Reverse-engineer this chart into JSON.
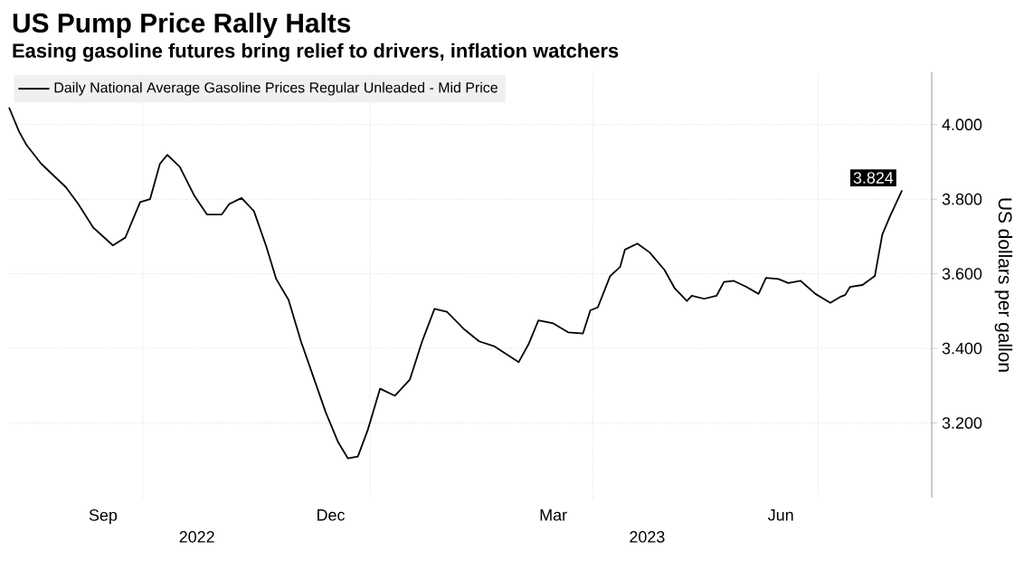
{
  "chart_data": {
    "type": "line",
    "title": "US Pump Price Rally Halts",
    "subtitle": "Easing gasoline futures bring relief to drivers, inflation watchers",
    "ylabel": "US dollars per gallon",
    "x": [
      "2022-08-08",
      "2022-08-12",
      "2022-08-15",
      "2022-08-21",
      "2022-08-31",
      "2022-09-05",
      "2022-09-11",
      "2022-09-19",
      "2022-09-24",
      "2022-09-30",
      "2022-10-04",
      "2022-10-08",
      "2022-10-11",
      "2022-10-16",
      "2022-10-22",
      "2022-10-27",
      "2022-11-02",
      "2022-11-05",
      "2022-11-10",
      "2022-11-15",
      "2022-11-20",
      "2022-11-24",
      "2022-11-29",
      "2022-12-04",
      "2022-12-09",
      "2022-12-14",
      "2022-12-19",
      "2022-12-23",
      "2022-12-27",
      "2022-12-31",
      "2023-01-05",
      "2023-01-11",
      "2023-01-17",
      "2023-01-22",
      "2023-01-27",
      "2023-02-01",
      "2023-02-08",
      "2023-02-14",
      "2023-02-20",
      "2023-03-02",
      "2023-03-06",
      "2023-03-10",
      "2023-03-16",
      "2023-03-22",
      "2023-03-28",
      "2023-03-31",
      "2023-04-03",
      "2023-04-08",
      "2023-04-12",
      "2023-04-14",
      "2023-04-19",
      "2023-04-24",
      "2023-04-30",
      "2023-05-04",
      "2023-05-09",
      "2023-05-11",
      "2023-05-16",
      "2023-05-21",
      "2023-05-24",
      "2023-05-28",
      "2023-06-02",
      "2023-06-07",
      "2023-06-10",
      "2023-06-15",
      "2023-06-19",
      "2023-06-24",
      "2023-06-30",
      "2023-07-06",
      "2023-07-10",
      "2023-07-12",
      "2023-07-14",
      "2023-07-19",
      "2023-07-24",
      "2023-07-27",
      "2023-07-30",
      "2023-08-04"
    ],
    "series": [
      {
        "name": "Daily National Average Gasoline Prices Regular Unleaded - Mid Price",
        "color": "#000000",
        "values": [
          4.046,
          3.982,
          3.946,
          3.895,
          3.832,
          3.787,
          3.724,
          3.676,
          3.697,
          3.792,
          3.8,
          3.895,
          3.919,
          3.887,
          3.808,
          3.759,
          3.759,
          3.787,
          3.803,
          3.768,
          3.673,
          3.586,
          3.53,
          3.419,
          3.324,
          3.229,
          3.149,
          3.105,
          3.11,
          3.181,
          3.292,
          3.273,
          3.316,
          3.419,
          3.506,
          3.498,
          3.451,
          3.419,
          3.406,
          3.363,
          3.411,
          3.475,
          3.467,
          3.443,
          3.44,
          3.502,
          3.51,
          3.594,
          3.618,
          3.665,
          3.681,
          3.657,
          3.61,
          3.562,
          3.527,
          3.541,
          3.533,
          3.541,
          3.578,
          3.581,
          3.565,
          3.546,
          3.589,
          3.586,
          3.575,
          3.581,
          3.546,
          3.522,
          3.538,
          3.543,
          3.565,
          3.57,
          3.594,
          3.705,
          3.752,
          3.824
        ]
      }
    ],
    "xlim": [
      "2022-08-08",
      "2023-08-16"
    ],
    "xticks": [
      {
        "value": "2022-09-15",
        "label": "Sep"
      },
      {
        "value": "2022-12-16",
        "label": "Dec"
      },
      {
        "value": "2023-03-16",
        "label": "Mar"
      },
      {
        "value": "2023-06-16",
        "label": "Jun"
      },
      {
        "value": "2022-10-01",
        "label": null
      },
      {
        "value": "2023-01-01",
        "label": null
      },
      {
        "value": "2023-04-01",
        "label": null
      },
      {
        "value": "2023-07-01",
        "label": null
      }
    ],
    "ylim": [
      3.0,
      4.14
    ],
    "yticks": [
      {
        "value": 3.2,
        "label": "3.200"
      },
      {
        "value": 3.4,
        "label": "3.400"
      },
      {
        "value": 3.6,
        "label": "3.600"
      },
      {
        "value": 3.8,
        "label": "3.800"
      },
      {
        "value": 4.0,
        "label": "4.000"
      }
    ],
    "grid": true,
    "legend": "top left",
    "marker": "none",
    "line_style": "solid",
    "annotations": [
      {
        "text": "3.824",
        "x": "2023-08-04",
        "y": 3.824
      },
      "2022",
      "2023"
    ]
  }
}
